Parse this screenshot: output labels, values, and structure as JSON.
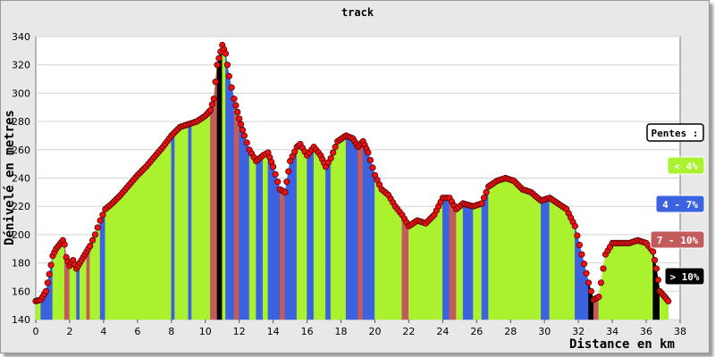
{
  "chart_data": {
    "type": "area",
    "title": "track",
    "xlabel": "Distance en km",
    "ylabel": "Dénivelé en metres",
    "xlim": [
      0,
      38
    ],
    "ylim": [
      140,
      340
    ],
    "xticks": [
      0,
      2,
      4,
      6,
      8,
      10,
      12,
      14,
      16,
      18,
      20,
      22,
      24,
      26,
      28,
      30,
      32,
      34,
      36,
      38
    ],
    "yticks": [
      140,
      160,
      180,
      200,
      220,
      240,
      260,
      280,
      300,
      320,
      340
    ],
    "grid": true,
    "legend_position": "right",
    "legend": {
      "title": "Pentes :",
      "entries": [
        {
          "label": "< 4%",
          "color": "#aaf12e",
          "text_color": "#ffffff"
        },
        {
          "label": "4 - 7%",
          "color": "#3b63e0",
          "text_color": "#ffffff"
        },
        {
          "label": "7 - 10%",
          "color": "#c25b5b",
          "text_color": "#ffffff"
        },
        {
          "label": "> 10%",
          "color": "#000000",
          "text_color": "#ffffff"
        }
      ]
    },
    "colors": {
      "flat": "#aaf12e",
      "moderate": "#3b63e0",
      "steep": "#c25b5b",
      "very_steep": "#000000",
      "marker": "#ee1111"
    },
    "profile": [
      [
        0.0,
        153
      ],
      [
        0.3,
        154
      ],
      [
        0.6,
        160
      ],
      [
        0.8,
        172
      ],
      [
        1.0,
        185
      ],
      [
        1.2,
        190
      ],
      [
        1.4,
        193
      ],
      [
        1.6,
        196
      ],
      [
        1.7,
        193
      ],
      [
        1.8,
        184
      ],
      [
        2.0,
        178
      ],
      [
        2.2,
        182
      ],
      [
        2.4,
        176
      ],
      [
        2.6,
        180
      ],
      [
        2.8,
        184
      ],
      [
        3.0,
        188
      ],
      [
        3.2,
        192
      ],
      [
        3.5,
        200
      ],
      [
        3.8,
        210
      ],
      [
        4.1,
        218
      ],
      [
        4.5,
        222
      ],
      [
        5.0,
        228
      ],
      [
        5.5,
        235
      ],
      [
        6.0,
        242
      ],
      [
        6.5,
        248
      ],
      [
        7.0,
        255
      ],
      [
        7.5,
        262
      ],
      [
        8.0,
        270
      ],
      [
        8.5,
        276
      ],
      [
        9.0,
        278
      ],
      [
        9.5,
        280
      ],
      [
        10.0,
        284
      ],
      [
        10.3,
        288
      ],
      [
        10.5,
        296
      ],
      [
        10.7,
        320
      ],
      [
        11.0,
        334
      ],
      [
        11.2,
        328
      ],
      [
        11.4,
        312
      ],
      [
        11.7,
        296
      ],
      [
        12.0,
        282
      ],
      [
        12.3,
        270
      ],
      [
        12.6,
        260
      ],
      [
        13.0,
        252
      ],
      [
        13.4,
        256
      ],
      [
        13.7,
        258
      ],
      [
        14.0,
        248
      ],
      [
        14.4,
        232
      ],
      [
        14.7,
        230
      ],
      [
        15.0,
        252
      ],
      [
        15.4,
        262
      ],
      [
        15.6,
        264
      ],
      [
        16.0,
        256
      ],
      [
        16.4,
        262
      ],
      [
        16.8,
        256
      ],
      [
        17.1,
        248
      ],
      [
        17.4,
        254
      ],
      [
        17.8,
        266
      ],
      [
        18.3,
        270
      ],
      [
        18.7,
        268
      ],
      [
        19.0,
        262
      ],
      [
        19.3,
        266
      ],
      [
        19.6,
        258
      ],
      [
        20.0,
        242
      ],
      [
        20.4,
        232
      ],
      [
        20.8,
        228
      ],
      [
        21.2,
        220
      ],
      [
        21.6,
        214
      ],
      [
        22.0,
        206
      ],
      [
        22.5,
        210
      ],
      [
        23.0,
        208
      ],
      [
        23.5,
        214
      ],
      [
        24.0,
        226
      ],
      [
        24.4,
        226
      ],
      [
        24.8,
        218
      ],
      [
        25.2,
        222
      ],
      [
        25.8,
        220
      ],
      [
        26.3,
        222
      ],
      [
        26.7,
        234
      ],
      [
        27.2,
        238
      ],
      [
        27.7,
        240
      ],
      [
        28.2,
        238
      ],
      [
        28.7,
        232
      ],
      [
        29.2,
        230
      ],
      [
        29.8,
        224
      ],
      [
        30.3,
        226
      ],
      [
        30.8,
        222
      ],
      [
        31.3,
        218
      ],
      [
        31.8,
        206
      ],
      [
        32.2,
        186
      ],
      [
        32.6,
        166
      ],
      [
        32.9,
        154
      ],
      [
        33.2,
        156
      ],
      [
        33.6,
        186
      ],
      [
        34.0,
        194
      ],
      [
        34.5,
        194
      ],
      [
        35.0,
        194
      ],
      [
        35.5,
        196
      ],
      [
        36.0,
        194
      ],
      [
        36.4,
        188
      ],
      [
        36.6,
        176
      ],
      [
        36.8,
        160
      ],
      [
        37.1,
        156
      ],
      [
        37.3,
        153
      ]
    ],
    "slope_segments": [
      {
        "from": 0.0,
        "to": 0.3,
        "class": "flat"
      },
      {
        "from": 0.3,
        "to": 1.0,
        "class": "moderate"
      },
      {
        "from": 1.0,
        "to": 1.7,
        "class": "flat"
      },
      {
        "from": 1.7,
        "to": 2.0,
        "class": "steep"
      },
      {
        "from": 2.0,
        "to": 2.4,
        "class": "flat"
      },
      {
        "from": 2.4,
        "to": 2.6,
        "class": "moderate"
      },
      {
        "from": 2.6,
        "to": 3.0,
        "class": "flat"
      },
      {
        "from": 3.0,
        "to": 3.2,
        "class": "steep"
      },
      {
        "from": 3.2,
        "to": 3.8,
        "class": "flat"
      },
      {
        "from": 3.8,
        "to": 4.1,
        "class": "moderate"
      },
      {
        "from": 4.1,
        "to": 8.0,
        "class": "flat"
      },
      {
        "from": 8.0,
        "to": 8.2,
        "class": "moderate"
      },
      {
        "from": 8.2,
        "to": 9.0,
        "class": "flat"
      },
      {
        "from": 9.0,
        "to": 9.2,
        "class": "moderate"
      },
      {
        "from": 9.2,
        "to": 10.3,
        "class": "flat"
      },
      {
        "from": 10.3,
        "to": 10.7,
        "class": "steep"
      },
      {
        "from": 10.7,
        "to": 11.0,
        "class": "very_steep"
      },
      {
        "from": 11.0,
        "to": 11.2,
        "class": "flat"
      },
      {
        "from": 11.2,
        "to": 11.7,
        "class": "moderate"
      },
      {
        "from": 11.7,
        "to": 12.0,
        "class": "steep"
      },
      {
        "from": 12.0,
        "to": 12.6,
        "class": "moderate"
      },
      {
        "from": 12.6,
        "to": 13.0,
        "class": "flat"
      },
      {
        "from": 13.0,
        "to": 13.4,
        "class": "moderate"
      },
      {
        "from": 13.4,
        "to": 13.7,
        "class": "flat"
      },
      {
        "from": 13.7,
        "to": 14.4,
        "class": "moderate"
      },
      {
        "from": 14.4,
        "to": 14.7,
        "class": "steep"
      },
      {
        "from": 14.7,
        "to": 15.4,
        "class": "moderate"
      },
      {
        "from": 15.4,
        "to": 16.0,
        "class": "flat"
      },
      {
        "from": 16.0,
        "to": 16.4,
        "class": "moderate"
      },
      {
        "from": 16.4,
        "to": 17.1,
        "class": "flat"
      },
      {
        "from": 17.1,
        "to": 17.4,
        "class": "moderate"
      },
      {
        "from": 17.4,
        "to": 18.3,
        "class": "flat"
      },
      {
        "from": 18.3,
        "to": 19.0,
        "class": "moderate"
      },
      {
        "from": 19.0,
        "to": 19.3,
        "class": "steep"
      },
      {
        "from": 19.3,
        "to": 20.0,
        "class": "moderate"
      },
      {
        "from": 20.0,
        "to": 21.6,
        "class": "flat"
      },
      {
        "from": 21.6,
        "to": 22.0,
        "class": "steep"
      },
      {
        "from": 22.0,
        "to": 24.0,
        "class": "flat"
      },
      {
        "from": 24.0,
        "to": 24.4,
        "class": "moderate"
      },
      {
        "from": 24.4,
        "to": 24.8,
        "class": "steep"
      },
      {
        "from": 24.8,
        "to": 25.2,
        "class": "flat"
      },
      {
        "from": 25.2,
        "to": 25.8,
        "class": "moderate"
      },
      {
        "from": 25.8,
        "to": 26.3,
        "class": "flat"
      },
      {
        "from": 26.3,
        "to": 26.7,
        "class": "moderate"
      },
      {
        "from": 26.7,
        "to": 29.8,
        "class": "flat"
      },
      {
        "from": 29.8,
        "to": 30.3,
        "class": "moderate"
      },
      {
        "from": 30.3,
        "to": 31.8,
        "class": "flat"
      },
      {
        "from": 31.8,
        "to": 32.6,
        "class": "moderate"
      },
      {
        "from": 32.6,
        "to": 32.9,
        "class": "very_steep"
      },
      {
        "from": 32.9,
        "to": 33.2,
        "class": "steep"
      },
      {
        "from": 33.2,
        "to": 36.4,
        "class": "flat"
      },
      {
        "from": 36.4,
        "to": 36.8,
        "class": "very_steep"
      },
      {
        "from": 36.8,
        "to": 37.3,
        "class": "flat"
      }
    ]
  }
}
